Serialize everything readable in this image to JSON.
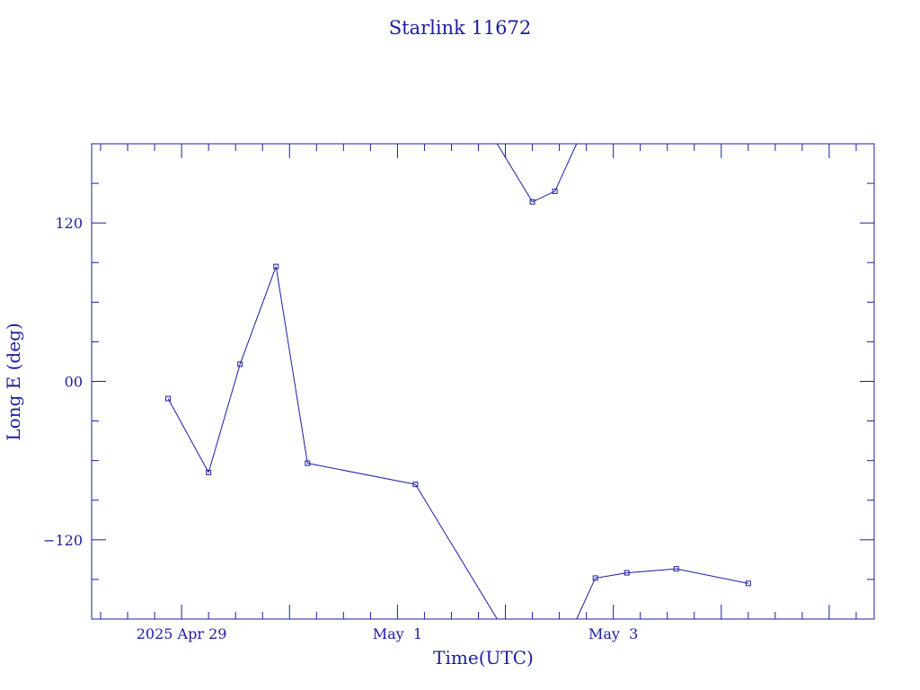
{
  "chart_data": {
    "type": "line",
    "title": "Starlink 11672",
    "xlabel": "Time(UTC)",
    "ylabel": "Long E (deg)",
    "x_ticks": [
      {
        "date": "2025-04-29",
        "label": "2025 Apr 29"
      },
      {
        "date": "2025-05-01",
        "label": "May  1"
      },
      {
        "date": "2025-05-03",
        "label": "May  3"
      }
    ],
    "y_ticks": [
      {
        "value": 120,
        "label": "120"
      },
      {
        "value": 0,
        "label": "00"
      },
      {
        "value": -120,
        "label": "−120"
      }
    ],
    "xlim": [
      "2025-04-28T04:00",
      "2025-05-05T10:00"
    ],
    "ylim": [
      -180,
      180
    ],
    "longitude_wraps": true,
    "grid": false,
    "line_color": "#1c1ca0",
    "series": [
      {
        "points": [
          {
            "x": "2025-04-28T21:00",
            "y": -13
          },
          {
            "x": "2025-04-29T06:00",
            "y": -69
          },
          {
            "x": "2025-04-29T13:00",
            "y": 13
          },
          {
            "x": "2025-04-29T21:00",
            "y": 87
          },
          {
            "x": "2025-04-30T04:00",
            "y": -62
          },
          {
            "x": "2025-05-01T04:00",
            "y": -78
          },
          {
            "x": "2025-05-02T06:00",
            "y": 136
          },
          {
            "x": "2025-05-02T11:00",
            "y": 144
          },
          {
            "x": "2025-05-02T20:00",
            "y": -149
          },
          {
            "x": "2025-05-03T03:00",
            "y": -145
          },
          {
            "x": "2025-05-03T14:00",
            "y": -142
          },
          {
            "x": "2025-05-04T06:00",
            "y": -153
          }
        ]
      }
    ]
  }
}
